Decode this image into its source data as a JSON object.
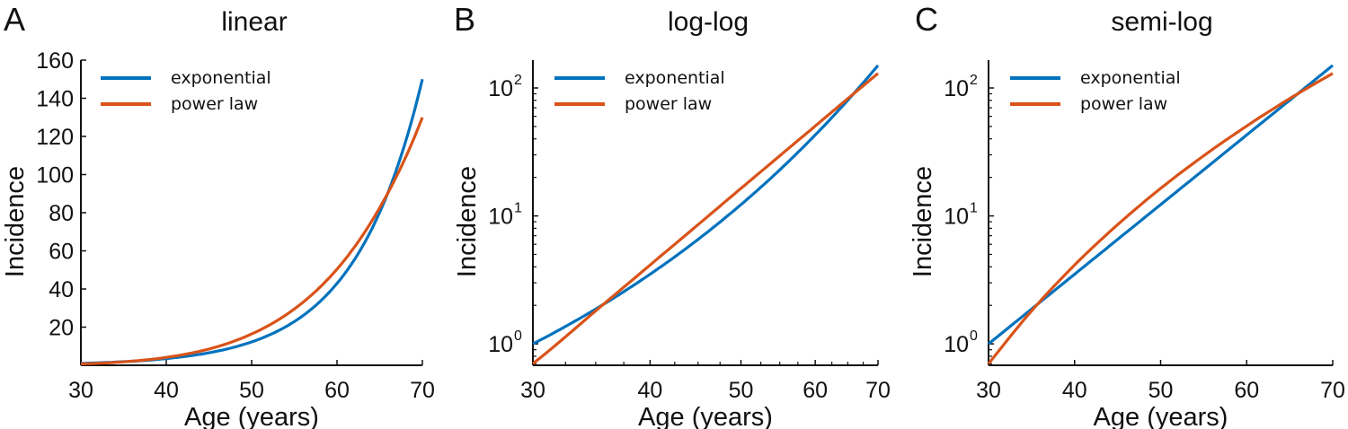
{
  "chart_data": [
    {
      "panel_letter": "A",
      "title": "linear",
      "type": "line",
      "xlabel": "Age (years)",
      "ylabel": "Incidence",
      "xscale": "linear",
      "yscale": "linear",
      "xlim": [
        30,
        70
      ],
      "ylim": [
        0,
        160
      ],
      "xticks": [
        30,
        40,
        50,
        60,
        70
      ],
      "xtick_labels": [
        "30",
        "40",
        "50",
        "60",
        "70"
      ],
      "yticks": [
        20,
        40,
        60,
        80,
        100,
        120,
        140,
        160
      ],
      "ytick_labels": [
        "20",
        "40",
        "60",
        "80",
        "100",
        "120",
        "140",
        "160"
      ],
      "legend_position": "top-left",
      "grid": false
    },
    {
      "panel_letter": "B",
      "title": "log-log",
      "type": "line",
      "xlabel": "Age (years)",
      "ylabel": "Incidence",
      "xscale": "log",
      "yscale": "log",
      "xlim": [
        30,
        70
      ],
      "ylim": [
        0.68,
        165
      ],
      "xticks": [
        30,
        40,
        50,
        60,
        70
      ],
      "xtick_labels": [
        "30",
        "40",
        "50",
        "60",
        "70"
      ],
      "yticks": [
        1,
        10,
        100
      ],
      "ytick_labels": [
        {
          "base": "10",
          "exp": "0"
        },
        {
          "base": "10",
          "exp": "1"
        },
        {
          "base": "10",
          "exp": "2"
        }
      ],
      "legend_position": "top-left",
      "grid": false
    },
    {
      "panel_letter": "C",
      "title": "semi-log",
      "type": "line",
      "xlabel": "Age (years)",
      "ylabel": "Incidence",
      "xscale": "linear",
      "yscale": "log",
      "xlim": [
        30,
        70
      ],
      "ylim": [
        0.68,
        165
      ],
      "xticks": [
        30,
        40,
        50,
        60,
        70
      ],
      "xtick_labels": [
        "30",
        "40",
        "50",
        "60",
        "70"
      ],
      "yticks": [
        1,
        10,
        100
      ],
      "ytick_labels": [
        {
          "base": "10",
          "exp": "0"
        },
        {
          "base": "10",
          "exp": "1"
        },
        {
          "base": "10",
          "exp": "2"
        }
      ],
      "legend_position": "top-left",
      "grid": false
    }
  ],
  "series": [
    {
      "name": "exponential",
      "color": "#0072BD",
      "x": [
        30,
        35,
        40,
        45,
        50,
        55,
        60,
        65,
        70
      ],
      "y": [
        1.0,
        1.87,
        3.5,
        6.55,
        12.25,
        22.9,
        42.9,
        80.2,
        150
      ]
    },
    {
      "name": "power law",
      "color": "#D95319",
      "x": [
        30,
        35,
        40,
        45,
        50,
        55,
        60,
        65,
        70
      ],
      "y": [
        0.7,
        1.81,
        4.13,
        8.54,
        16.4,
        29.5,
        50.4,
        82.6,
        130
      ]
    }
  ]
}
